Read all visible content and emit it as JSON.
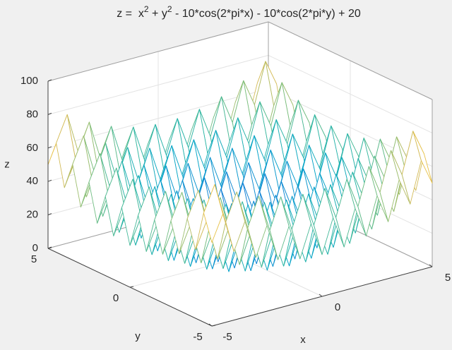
{
  "chart_data": {
    "type": "mesh",
    "title": [
      "z =  x",
      "2",
      " + y",
      "2",
      " - 10*cos(2*pi*x) - 10*cos(2*pi*y) + 20"
    ],
    "x_label": "x",
    "y_label": "y",
    "z_label": "z",
    "xlim": [
      -5,
      5
    ],
    "ylim": [
      -5,
      5
    ],
    "zlim": [
      0,
      100
    ],
    "xticks": [
      -5,
      0,
      5
    ],
    "yticks": [
      -5,
      0,
      5
    ],
    "zticks": [
      0,
      20,
      40,
      60,
      80,
      100
    ],
    "grid": true,
    "colormap": [
      "#352a87",
      "#0f5cdd",
      "#1481d6",
      "#06a4ca",
      "#2eb7a4",
      "#87bf77",
      "#d1bb59",
      "#fec832",
      "#f9fb0e"
    ],
    "x": [
      -5,
      -4.5,
      -4,
      -3.5,
      -3,
      -2.5,
      -2,
      -1.5,
      -1,
      -0.5,
      0,
      0.5,
      1,
      1.5,
      2,
      2.5,
      3,
      3.5,
      4,
      4.5,
      5
    ],
    "y": [
      -5,
      -4.5,
      -4,
      -3.5,
      -3,
      -2.5,
      -2,
      -1.5,
      -1,
      -0.5,
      0,
      0.5,
      1,
      1.5,
      2,
      2.5,
      3,
      3.5,
      4,
      4.5,
      5
    ],
    "z": [
      [
        50,
        65.25,
        41,
        57.25,
        34,
        51.25,
        29,
        47.25,
        26,
        45.25,
        25,
        45.25,
        26,
        47.25,
        29,
        51.25,
        34,
        57.25,
        41,
        65.25,
        50
      ],
      [
        65.25,
        80.5,
        56.25,
        72.5,
        49.25,
        66.5,
        44.25,
        62.5,
        41.25,
        60.5,
        40.25,
        60.5,
        41.25,
        62.5,
        44.25,
        66.5,
        49.25,
        72.5,
        56.25,
        80.5,
        65.25
      ],
      [
        41,
        56.25,
        32,
        48.25,
        25,
        42.25,
        20,
        38.25,
        17,
        36.25,
        16,
        36.25,
        17,
        38.25,
        20,
        42.25,
        25,
        48.25,
        32,
        56.25,
        41
      ],
      [
        57.25,
        72.5,
        48.25,
        64.5,
        41.25,
        58.5,
        36.25,
        54.5,
        33.25,
        52.5,
        32.25,
        52.5,
        33.25,
        54.5,
        36.25,
        58.5,
        41.25,
        64.5,
        48.25,
        72.5,
        57.25
      ],
      [
        34,
        49.25,
        25,
        41.25,
        18,
        35.25,
        13,
        31.25,
        10,
        29.25,
        9,
        29.25,
        10,
        31.25,
        13,
        35.25,
        18,
        41.25,
        25,
        49.25,
        34
      ],
      [
        51.25,
        66.5,
        42.25,
        58.5,
        35.25,
        52.5,
        30.25,
        48.5,
        27.25,
        46.5,
        26.25,
        46.5,
        27.25,
        48.5,
        30.25,
        52.5,
        35.25,
        58.5,
        42.25,
        66.5,
        51.25
      ],
      [
        29,
        44.25,
        20,
        36.25,
        13,
        30.25,
        8,
        26.25,
        5,
        24.25,
        4,
        24.25,
        5,
        26.25,
        8,
        30.25,
        13,
        36.25,
        20,
        44.25,
        29
      ],
      [
        47.25,
        62.5,
        38.25,
        54.5,
        31.25,
        48.5,
        26.25,
        44.5,
        23.25,
        42.5,
        22.25,
        42.5,
        23.25,
        44.5,
        26.25,
        48.5,
        31.25,
        54.5,
        38.25,
        62.5,
        47.25
      ],
      [
        26,
        41.25,
        17,
        33.25,
        10,
        27.25,
        5,
        23.25,
        2,
        21.25,
        1,
        21.25,
        2,
        23.25,
        5,
        27.25,
        10,
        33.25,
        17,
        41.25,
        26
      ],
      [
        45.25,
        60.5,
        36.25,
        52.5,
        29.25,
        46.5,
        24.25,
        42.5,
        21.25,
        40.5,
        20.25,
        40.5,
        21.25,
        42.5,
        24.25,
        46.5,
        29.25,
        52.5,
        36.25,
        60.5,
        45.25
      ],
      [
        25,
        40.25,
        16,
        32.25,
        9,
        26.25,
        4,
        22.25,
        1,
        20.25,
        0,
        20.25,
        1,
        22.25,
        4,
        26.25,
        9,
        32.25,
        16,
        40.25,
        25
      ],
      [
        45.25,
        60.5,
        36.25,
        52.5,
        29.25,
        46.5,
        24.25,
        42.5,
        21.25,
        40.5,
        20.25,
        40.5,
        21.25,
        42.5,
        24.25,
        46.5,
        29.25,
        52.5,
        36.25,
        60.5,
        45.25
      ],
      [
        26,
        41.25,
        17,
        33.25,
        10,
        27.25,
        5,
        23.25,
        2,
        21.25,
        1,
        21.25,
        2,
        23.25,
        5,
        27.25,
        10,
        33.25,
        17,
        41.25,
        26
      ],
      [
        47.25,
        62.5,
        38.25,
        54.5,
        31.25,
        48.5,
        26.25,
        44.5,
        23.25,
        42.5,
        22.25,
        42.5,
        23.25,
        44.5,
        26.25,
        48.5,
        31.25,
        54.5,
        38.25,
        62.5,
        47.25
      ],
      [
        29,
        44.25,
        20,
        36.25,
        13,
        30.25,
        8,
        26.25,
        5,
        24.25,
        4,
        24.25,
        5,
        26.25,
        8,
        30.25,
        13,
        36.25,
        20,
        44.25,
        29
      ],
      [
        51.25,
        66.5,
        42.25,
        58.5,
        35.25,
        52.5,
        30.25,
        48.5,
        27.25,
        46.5,
        26.25,
        46.5,
        27.25,
        48.5,
        30.25,
        52.5,
        35.25,
        58.5,
        42.25,
        66.5,
        51.25
      ],
      [
        34,
        49.25,
        25,
        41.25,
        18,
        35.25,
        13,
        31.25,
        10,
        29.25,
        9,
        29.25,
        10,
        31.25,
        13,
        35.25,
        18,
        41.25,
        25,
        49.25,
        34
      ],
      [
        57.25,
        72.5,
        48.25,
        64.5,
        41.25,
        58.5,
        36.25,
        54.5,
        33.25,
        52.5,
        32.25,
        52.5,
        33.25,
        54.5,
        36.25,
        58.5,
        41.25,
        64.5,
        48.25,
        72.5,
        57.25
      ],
      [
        41,
        56.25,
        32,
        48.25,
        25,
        42.25,
        20,
        38.25,
        17,
        36.25,
        16,
        36.25,
        17,
        38.25,
        20,
        42.25,
        25,
        48.25,
        32,
        56.25,
        41
      ],
      [
        65.25,
        80.5,
        56.25,
        72.5,
        49.25,
        66.5,
        44.25,
        62.5,
        41.25,
        60.5,
        40.25,
        60.5,
        41.25,
        62.5,
        44.25,
        66.5,
        49.25,
        72.5,
        56.25,
        80.5,
        65.25
      ],
      [
        50,
        65.25,
        41,
        57.25,
        34,
        51.25,
        29,
        47.25,
        26,
        45.25,
        25,
        45.25,
        26,
        47.25,
        29,
        51.25,
        34,
        57.25,
        41,
        65.25,
        50
      ]
    ]
  }
}
